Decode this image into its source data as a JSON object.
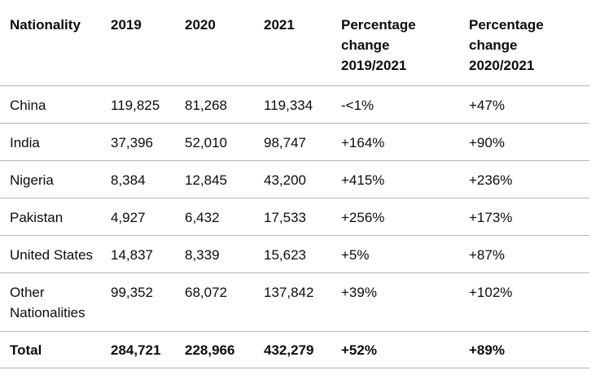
{
  "table": {
    "headers": [
      "Nationality",
      "2019",
      "2020",
      "2021",
      "Percentage change 2019/2021",
      "Percentage change 2020/2021"
    ],
    "header_lines": {
      "col4": [
        "Percentage",
        "change",
        "2019/2021"
      ],
      "col5": [
        "Percentage",
        "change",
        "2020/2021"
      ]
    },
    "rows": [
      [
        "China",
        "119,825",
        "81,268",
        "119,334",
        "-<1%",
        "+47%"
      ],
      [
        "India",
        "37,396",
        "52,010",
        "98,747",
        "+164%",
        "+90%"
      ],
      [
        "Nigeria",
        "8,384",
        "12,845",
        "43,200",
        "+415%",
        "+236%"
      ],
      [
        "Pakistan",
        "4,927",
        "6,432",
        "17,533",
        "+256%",
        "+173%"
      ],
      [
        "United States",
        "14,837",
        "8,339",
        "15,623",
        "+5%",
        "+87%"
      ],
      [
        "Other Nationalities",
        "99,352",
        "68,072",
        "137,842",
        "+39%",
        "+102%"
      ]
    ],
    "other_label_lines": [
      "Other",
      "Nationalities"
    ],
    "total": [
      "Total",
      "284,721",
      "228,966",
      "432,279",
      "+52%",
      "+89%"
    ]
  }
}
